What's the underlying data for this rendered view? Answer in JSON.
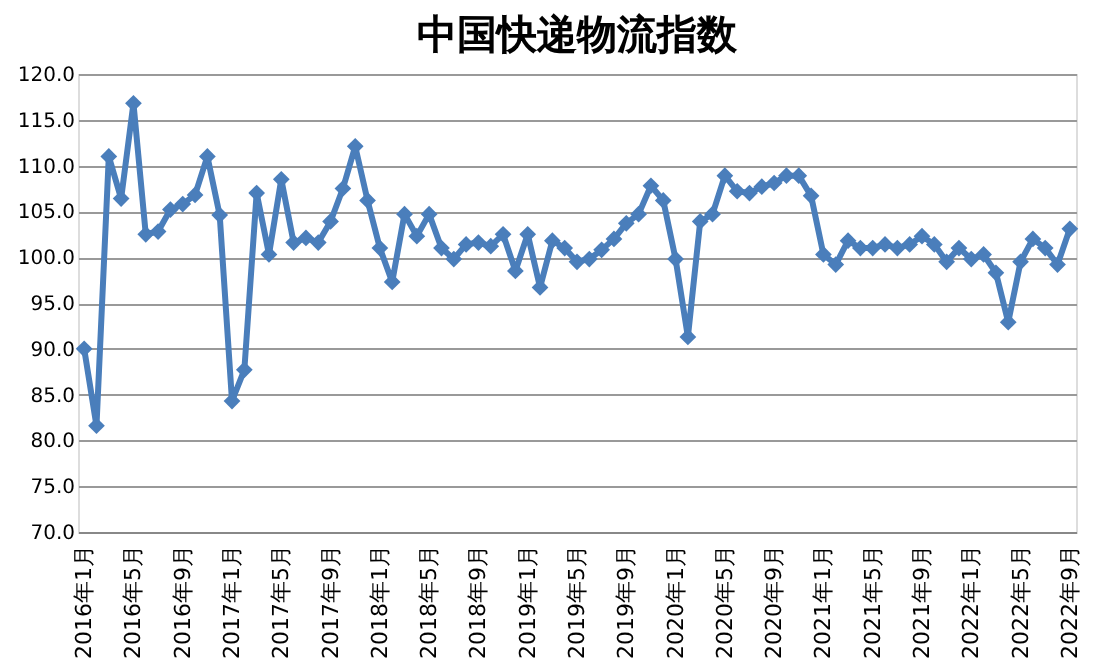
{
  "chart_data": {
    "type": "line",
    "title": "中国快递物流指数",
    "categories": [
      "2016年1月",
      null,
      null,
      null,
      "2016年5月",
      null,
      null,
      null,
      "2016年9月",
      null,
      null,
      null,
      "2017年1月",
      null,
      null,
      null,
      "2017年5月",
      null,
      null,
      null,
      "2017年9月",
      null,
      null,
      null,
      "2018年1月",
      null,
      null,
      null,
      "2018年5月",
      null,
      null,
      null,
      "2018年9月",
      null,
      null,
      null,
      "2019年1月",
      null,
      null,
      null,
      "2019年5月",
      null,
      null,
      null,
      "2019年9月",
      null,
      null,
      null,
      "2020年1月",
      null,
      null,
      null,
      "2020年5月",
      null,
      null,
      null,
      "2020年9月",
      null,
      null,
      null,
      "2021年1月",
      null,
      null,
      null,
      "2021年5月",
      null,
      null,
      null,
      "2021年9月",
      null,
      null,
      null,
      "2022年1月",
      null,
      null,
      null,
      "2022年5月",
      null,
      null,
      null,
      "2022年9月"
    ],
    "series": [
      {
        "color": "#4a7ebb",
        "values": [
          90.0,
          81.6,
          111.0,
          106.4,
          116.8,
          102.5,
          102.8,
          105.2,
          105.8,
          106.8,
          111.0,
          104.6,
          84.3,
          87.7,
          107.0,
          100.3,
          108.5,
          101.6,
          102.1,
          101.6,
          103.9,
          107.5,
          112.1,
          106.2,
          101.0,
          97.3,
          104.7,
          102.3,
          104.7,
          101.0,
          99.8,
          101.4,
          101.6,
          101.2,
          102.5,
          98.5,
          102.5,
          96.7,
          101.8,
          101.0,
          99.5,
          99.8,
          100.8,
          102.0,
          103.7,
          104.7,
          107.8,
          106.2,
          99.8,
          91.3,
          103.9,
          104.7,
          108.9,
          107.2,
          107.0,
          107.7,
          108.1,
          108.9,
          108.9,
          106.7,
          100.3,
          99.2,
          101.8,
          101.0,
          101.0,
          101.4,
          101.0,
          101.4,
          102.3,
          101.4,
          99.5,
          101.0,
          99.8,
          100.3,
          98.3,
          92.9,
          99.5,
          102.0,
          101.0,
          99.2,
          103.1
        ]
      }
    ],
    "ylim": [
      70,
      120
    ],
    "yticks": [
      {
        "value": 70,
        "label": "70.0"
      },
      {
        "value": 75,
        "label": "75.0"
      },
      {
        "value": 80,
        "label": "80.0"
      },
      {
        "value": 85,
        "label": "85.0"
      },
      {
        "value": 90,
        "label": "90.0"
      },
      {
        "value": 95,
        "label": "95.0"
      },
      {
        "value": 100,
        "label": "100.0"
      },
      {
        "value": 105,
        "label": "105.0"
      },
      {
        "value": 110,
        "label": "110.0"
      },
      {
        "value": 115,
        "label": "115.0"
      },
      {
        "value": 120,
        "label": "120.0"
      }
    ],
    "grid": "y",
    "marker": "diamond",
    "line_style": "solid"
  }
}
